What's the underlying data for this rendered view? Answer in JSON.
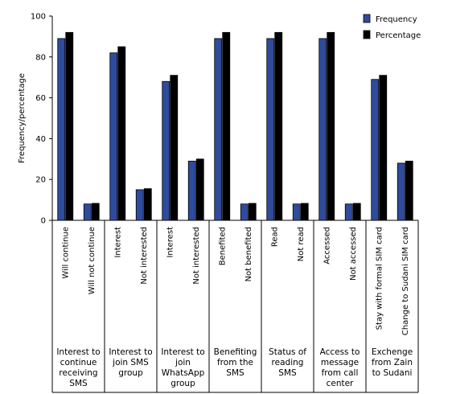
{
  "chart_data": {
    "type": "bar",
    "y_label": "Frequency/percentage",
    "categories": [
      "Will continue",
      "Will not continue",
      "Interest",
      "Not interested",
      "Interest",
      "Not interested",
      "Benefited",
      "Not benefited",
      "Read",
      "Not read",
      "Accessed",
      "Not accessed",
      "Stay with formal SIM card",
      "Change to Sudani SIM card"
    ],
    "groups": [
      "Interest to continue receiving SMS",
      "Interest to join SMS group",
      "Interest to join WhatsApp group",
      "Benefiting from the SMS",
      "Status of reading SMS",
      "Access to message from call center",
      "Exchenge from Zain to Sudani"
    ],
    "series": [
      {
        "name": "Frequency",
        "color": "#2f4b9c",
        "values": [
          89,
          8,
          82,
          15,
          68,
          29,
          89,
          8,
          89,
          8,
          89,
          8,
          69,
          28
        ]
      },
      {
        "name": "Percentage",
        "color": "#000000",
        "values": [
          92,
          8.3,
          85,
          15.5,
          71,
          30,
          92,
          8.3,
          92,
          8.3,
          92,
          8.3,
          71,
          29
        ]
      }
    ],
    "ylim": [
      0,
      100
    ],
    "yticks": [
      0,
      20,
      40,
      60,
      80,
      100
    ],
    "legend": "top-right"
  }
}
